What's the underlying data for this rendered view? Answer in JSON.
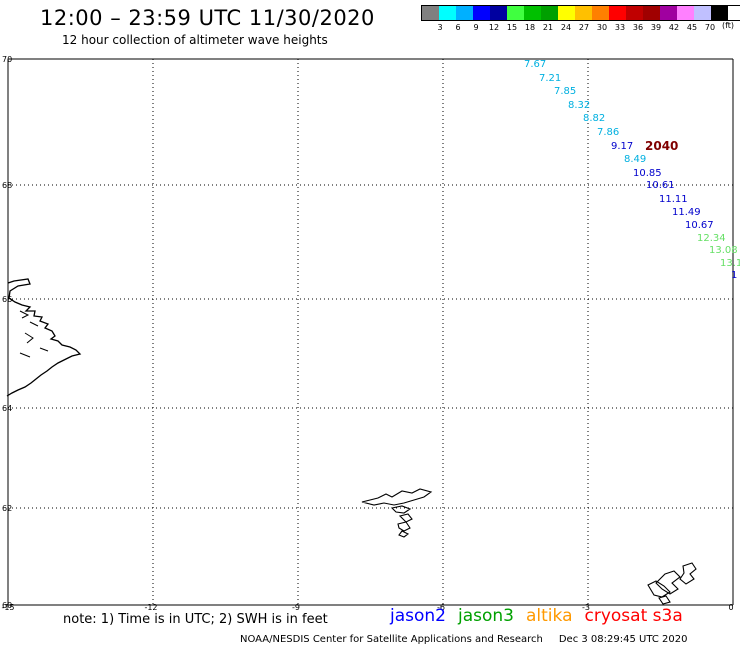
{
  "header": {
    "title": "12:00 – 23:59 UTC 11/30/2020",
    "subtitle": "12 hour collection of altimeter wave heights"
  },
  "color_scale": {
    "colors": [
      "#808080",
      "#00ffff",
      "#00b0ff",
      "#0000ff",
      "#0000a0",
      "#40ff40",
      "#00c000",
      "#00a000",
      "#ffff00",
      "#ffc000",
      "#ff8000",
      "#ff0000",
      "#c00000",
      "#a00000",
      "#a000a0",
      "#ff80ff",
      "#c0c0ff",
      "#000000"
    ],
    "labels": [
      "3",
      "6",
      "9",
      "12",
      "15",
      "18",
      "21",
      "24",
      "27",
      "30",
      "33",
      "36",
      "39",
      "42",
      "45",
      "70"
    ],
    "unit": "(ft)"
  },
  "map": {
    "lon_ticks": [
      "-15",
      "-12",
      "-9",
      "-6",
      "-3",
      "0"
    ],
    "lat_ticks": [
      "70",
      "68",
      "66",
      "64",
      "62",
      "60"
    ],
    "observations": [
      {
        "label": "7.67",
        "color": "#00b0e0"
      },
      {
        "label": "7.21",
        "color": "#00b0e0"
      },
      {
        "label": "7.85",
        "color": "#00b0e0"
      },
      {
        "label": "8.32",
        "color": "#00b0e0"
      },
      {
        "label": "8.82",
        "color": "#00b0e0"
      },
      {
        "label": "7.86",
        "color": "#00b0e0"
      },
      {
        "label": "9.17",
        "color": "#0000cc"
      },
      {
        "label": "8.49",
        "color": "#00b0e0"
      },
      {
        "label": "10.85",
        "color": "#0000cc"
      },
      {
        "label": "10.61",
        "color": "#0000cc"
      },
      {
        "label": "11.11",
        "color": "#0000cc"
      },
      {
        "label": "11.49",
        "color": "#0000cc"
      },
      {
        "label": "10.67",
        "color": "#0000cc"
      },
      {
        "label": "12.34",
        "color": "#66e066"
      },
      {
        "label": "13.08",
        "color": "#66e066"
      },
      {
        "label": "13.1",
        "color": "#66e066"
      },
      {
        "label": "1",
        "color": "#0000cc"
      }
    ],
    "time_marker": {
      "label": "2040",
      "color": "#800000"
    }
  },
  "footer": {
    "note": "note: 1) Time is in UTC; 2) SWH is in feet",
    "satellites": [
      {
        "name": "jason2",
        "color": "#0000ff"
      },
      {
        "name": "jason3",
        "color": "#00a000"
      },
      {
        "name": "altika",
        "color": "#ff9900"
      },
      {
        "name": "cryosat s3a",
        "color": "#ff0000"
      }
    ],
    "credit": "NOAA/NESDIS Center for Satellite Applications and Research",
    "timestamp": "Dec  3 08:29:45 UTC 2020"
  }
}
